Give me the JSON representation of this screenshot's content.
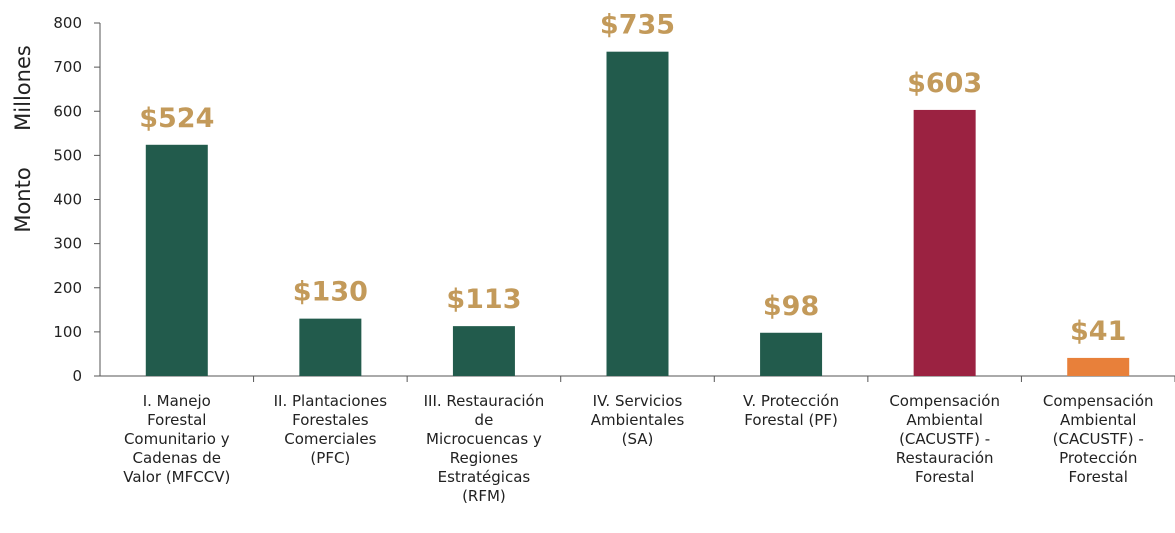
{
  "chart_data": {
    "type": "bar",
    "ylabel": "Monto",
    "yunit": "Millones",
    "categories": [
      "I. Manejo\nForestal\nComunitario y\nCadenas de\nValor (MFCCV)",
      "II. Plantaciones\nForestales\nComerciales\n(PFC)",
      "III. Restauración\nde\nMicrocuencas y\nRegiones\nEstratégicas\n(RFM)",
      "IV. Servicios\nAmbientales\n(SA)",
      "V. Protección\nForestal (PF)",
      "Compensación\nAmbiental\n(CACUSTF) -\nRestauración\nForestal",
      "Compensación\nAmbiental\n(CACUSTF) -\nProtección\nForestal"
    ],
    "values": [
      524,
      130,
      113,
      735,
      98,
      603,
      41
    ],
    "value_labels": [
      "$524",
      "$130",
      "$113",
      "$735",
      "$98",
      "$603",
      "$41"
    ],
    "colors": [
      "#225b4c",
      "#225b4c",
      "#225b4c",
      "#225b4c",
      "#225b4c",
      "#9b2241",
      "#e8803a"
    ],
    "ylim": [
      0,
      800
    ],
    "yticks": [
      0,
      100,
      200,
      300,
      400,
      500,
      600,
      700,
      800
    ]
  }
}
